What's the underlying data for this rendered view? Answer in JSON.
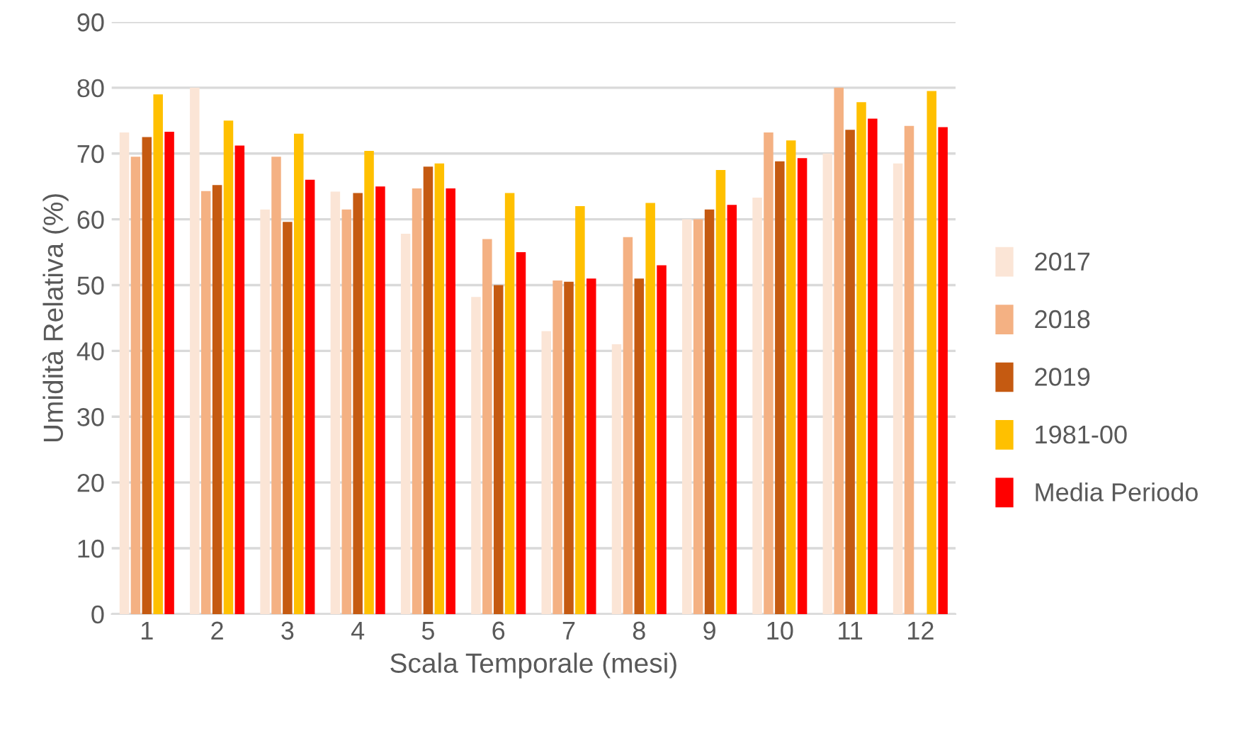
{
  "chart_data": {
    "type": "bar",
    "xlabel": "Scala Temporale (mesi)",
    "ylabel": "Umidità Relativa (%)",
    "categories": [
      "1",
      "2",
      "3",
      "4",
      "5",
      "6",
      "7",
      "8",
      "9",
      "10",
      "11",
      "12"
    ],
    "series": [
      {
        "name": "2017",
        "color": "#fbe5d6",
        "values": [
          73.2,
          80,
          61.5,
          64.2,
          57.8,
          48.2,
          43,
          41,
          60,
          63.3,
          70,
          68.5
        ]
      },
      {
        "name": "2018",
        "color": "#f4b183",
        "values": [
          69.5,
          64.3,
          69.5,
          61.5,
          64.7,
          57,
          50.7,
          57.3,
          60,
          73.2,
          80,
          74.2
        ]
      },
      {
        "name": "2019",
        "color": "#c55a11",
        "values": [
          72.5,
          65.2,
          59.6,
          64,
          68,
          50,
          50.5,
          51,
          61.5,
          68.8,
          73.6,
          null
        ]
      },
      {
        "name": "1981-00",
        "color": "#ffc000",
        "values": [
          79,
          75,
          73,
          70.4,
          68.5,
          64,
          62,
          62.5,
          67.5,
          72,
          77.8,
          79.5
        ]
      },
      {
        "name": "Media Periodo",
        "color": "#ff0000",
        "values": [
          73.3,
          71.2,
          66,
          65,
          64.7,
          55,
          51,
          53,
          62.2,
          69.3,
          75.3,
          74
        ]
      }
    ],
    "ylim": [
      0,
      90
    ],
    "yticks": [
      0,
      10,
      20,
      30,
      40,
      50,
      60,
      70,
      80,
      90
    ],
    "grid": "y",
    "legend": "right"
  }
}
